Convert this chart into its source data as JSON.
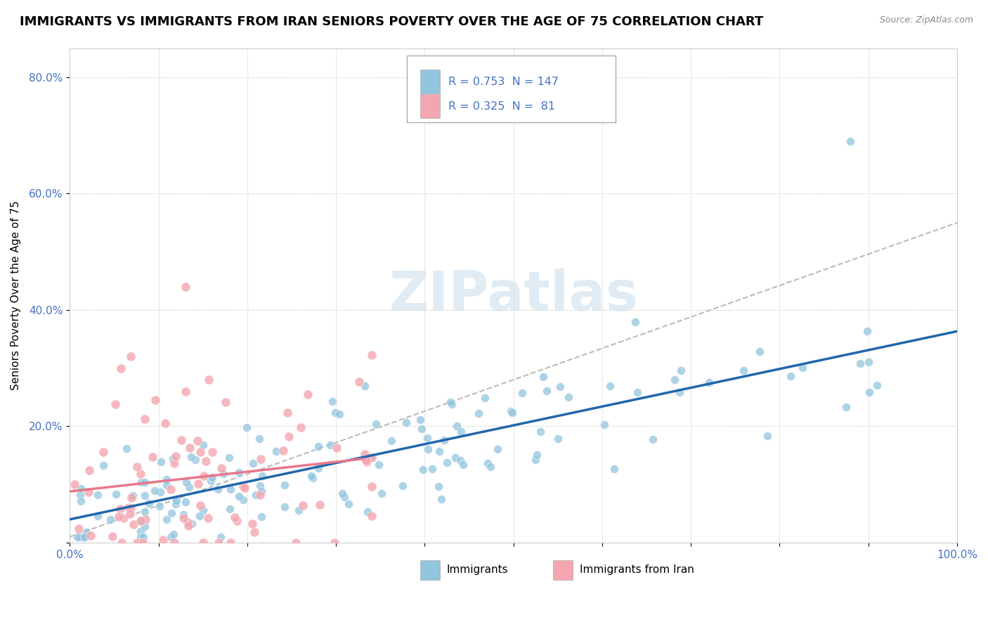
{
  "title": "IMMIGRANTS VS IMMIGRANTS FROM IRAN SENIORS POVERTY OVER THE AGE OF 75 CORRELATION CHART",
  "source": "Source: ZipAtlas.com",
  "ylabel": "Seniors Poverty Over the Age of 75",
  "xlim": [
    0.0,
    1.0
  ],
  "ylim": [
    0.0,
    0.85
  ],
  "xtick_labels": [
    "0.0%",
    "",
    "",
    "",
    "",
    "",
    "",
    "",
    "",
    "",
    "100.0%"
  ],
  "ytick_labels": [
    "",
    "20.0%",
    "40.0%",
    "60.0%",
    "80.0%"
  ],
  "legend1_R": "0.753",
  "legend1_N": "147",
  "legend2_R": "0.325",
  "legend2_N": " 81",
  "blue_color": "#92c5de",
  "pink_color": "#f4a6b0",
  "blue_line_color": "#2166ac",
  "pink_line_color": "#e8778a",
  "trendline_dashed_color": "#bbbbbb",
  "watermark": "ZIPatlas",
  "title_fontsize": 13,
  "label_fontsize": 11,
  "tick_fontsize": 11,
  "tick_color": "#4472c4",
  "legend_text_color": "#4472c4",
  "grid_color": "#dddddd",
  "spine_color": "#cccccc"
}
